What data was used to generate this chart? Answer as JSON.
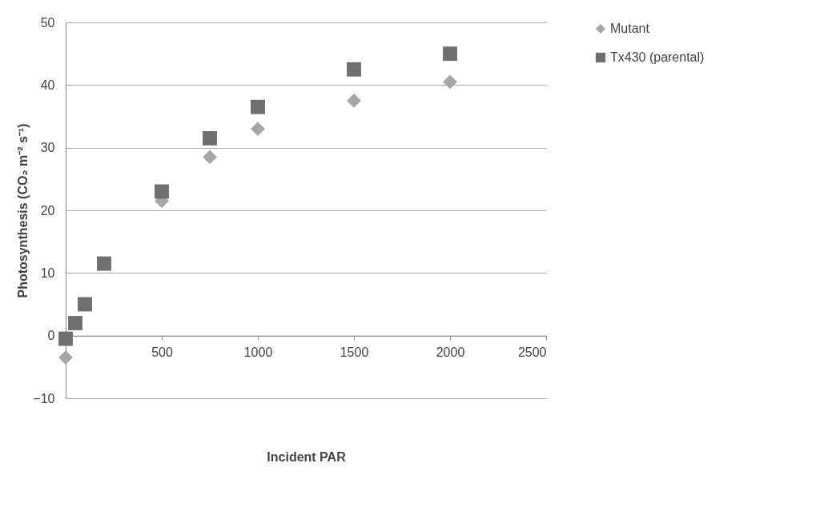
{
  "chart_data": {
    "type": "scatter",
    "xlabel": "Incident PAR",
    "ylabel": "Photosynthesis (CO₂ m⁻² s⁻¹)",
    "xlim": [
      0,
      2500
    ],
    "xticks": [
      500,
      1000,
      1500,
      2000,
      2500
    ],
    "ylim": [
      -10,
      50
    ],
    "yticks": [
      -10,
      0,
      10,
      20,
      30,
      40,
      50
    ],
    "grid": "y",
    "legend": "right",
    "series": [
      {
        "name": "Mutant",
        "color": "#a6a6a6",
        "marker": "diamond",
        "x": [
          0,
          500,
          750,
          1000,
          1500,
          2000
        ],
        "values": [
          -3.5,
          21.5,
          28.5,
          33,
          37.5,
          40.5
        ]
      },
      {
        "name": "Tx430 (parental)",
        "color": "#6f6f6f",
        "marker": "square",
        "x": [
          0,
          50,
          100,
          200,
          500,
          750,
          1000,
          1500,
          2000
        ],
        "values": [
          -0.5,
          2,
          5,
          11.5,
          23,
          31.5,
          36.5,
          42.5,
          45
        ]
      }
    ]
  }
}
